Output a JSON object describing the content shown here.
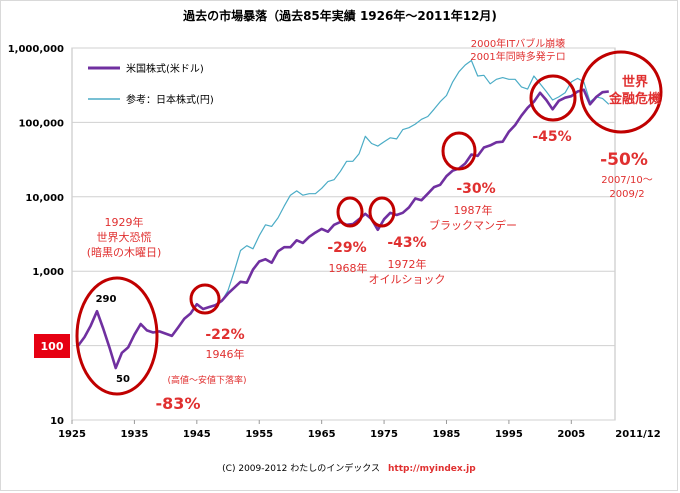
{
  "chart_data": {
    "type": "line",
    "title": "過去の市場暴落（過去85年実績 1926年～2011年12月)",
    "y_scale": "log",
    "ylim": [
      10,
      1000000
    ],
    "xlim": [
      1925,
      2012
    ],
    "y_ticks": [
      "10",
      "100",
      "1,000",
      "10,000",
      "100,000",
      "1,000,000"
    ],
    "x_ticks": [
      "1925",
      "1935",
      "1945",
      "1955",
      "1965",
      "1975",
      "1985",
      "1995",
      "2005"
    ],
    "x_end_label": "2011/12",
    "grid": true,
    "legend_position": "top-left",
    "base_marker": "100",
    "series": [
      {
        "name": "米国株式(米ドル)",
        "color": "#7030a0",
        "points": [
          [
            1926,
            100
          ],
          [
            1927,
            130
          ],
          [
            1928,
            185
          ],
          [
            1929,
            290
          ],
          [
            1930,
            170
          ],
          [
            1931,
            95
          ],
          [
            1932,
            50
          ],
          [
            1933,
            80
          ],
          [
            1934,
            95
          ],
          [
            1935,
            140
          ],
          [
            1936,
            195
          ],
          [
            1937,
            160
          ],
          [
            1938,
            150
          ],
          [
            1939,
            155
          ],
          [
            1940,
            145
          ],
          [
            1941,
            135
          ],
          [
            1942,
            175
          ],
          [
            1943,
            230
          ],
          [
            1944,
            270
          ],
          [
            1945,
            360
          ],
          [
            1946,
            310
          ],
          [
            1947,
            330
          ],
          [
            1948,
            350
          ],
          [
            1949,
            400
          ],
          [
            1950,
            500
          ],
          [
            1951,
            600
          ],
          [
            1952,
            720
          ],
          [
            1953,
            700
          ],
          [
            1954,
            1050
          ],
          [
            1955,
            1350
          ],
          [
            1956,
            1450
          ],
          [
            1957,
            1300
          ],
          [
            1958,
            1850
          ],
          [
            1959,
            2100
          ],
          [
            1960,
            2100
          ],
          [
            1961,
            2600
          ],
          [
            1962,
            2400
          ],
          [
            1963,
            2900
          ],
          [
            1964,
            3300
          ],
          [
            1965,
            3700
          ],
          [
            1966,
            3400
          ],
          [
            1967,
            4200
          ],
          [
            1968,
            4600
          ],
          [
            1969,
            4200
          ],
          [
            1970,
            4300
          ],
          [
            1971,
            5000
          ],
          [
            1972,
            5900
          ],
          [
            1973,
            5000
          ],
          [
            1974,
            3600
          ],
          [
            1975,
            5000
          ],
          [
            1976,
            6100
          ],
          [
            1977,
            5700
          ],
          [
            1978,
            6100
          ],
          [
            1979,
            7200
          ],
          [
            1980,
            9500
          ],
          [
            1981,
            9000
          ],
          [
            1982,
            11000
          ],
          [
            1983,
            13500
          ],
          [
            1984,
            14500
          ],
          [
            1985,
            19000
          ],
          [
            1986,
            22500
          ],
          [
            1987,
            24000
          ],
          [
            1988,
            28000
          ],
          [
            1989,
            37000
          ],
          [
            1990,
            35500
          ],
          [
            1991,
            46000
          ],
          [
            1992,
            49000
          ],
          [
            1993,
            54000
          ],
          [
            1994,
            55000
          ],
          [
            1995,
            75000
          ],
          [
            1996,
            92000
          ],
          [
            1997,
            123000
          ],
          [
            1998,
            157000
          ],
          [
            1999,
            190000
          ],
          [
            2000,
            250000
          ],
          [
            2001,
            200000
          ],
          [
            2002,
            150000
          ],
          [
            2003,
            195000
          ],
          [
            2004,
            215000
          ],
          [
            2005,
            225000
          ],
          [
            2006,
            260000
          ],
          [
            2007,
            275000
          ],
          [
            2008,
            175000
          ],
          [
            2009,
            220000
          ],
          [
            2010,
            255000
          ],
          [
            2011,
            260000
          ]
        ]
      },
      {
        "name": "参考：日本株式(円)",
        "color": "#4bacc6",
        "points": [
          [
            1949,
            400
          ],
          [
            1950,
            550
          ],
          [
            1951,
            1000
          ],
          [
            1952,
            1900
          ],
          [
            1953,
            2200
          ],
          [
            1954,
            2000
          ],
          [
            1955,
            3000
          ],
          [
            1956,
            4200
          ],
          [
            1957,
            4000
          ],
          [
            1958,
            5200
          ],
          [
            1959,
            7500
          ],
          [
            1960,
            10500
          ],
          [
            1961,
            12000
          ],
          [
            1962,
            10500
          ],
          [
            1963,
            11000
          ],
          [
            1964,
            11000
          ],
          [
            1965,
            13000
          ],
          [
            1966,
            16000
          ],
          [
            1967,
            17000
          ],
          [
            1968,
            22000
          ],
          [
            1969,
            30000
          ],
          [
            1970,
            30000
          ],
          [
            1971,
            38000
          ],
          [
            1972,
            65000
          ],
          [
            1973,
            52000
          ],
          [
            1974,
            48000
          ],
          [
            1975,
            55000
          ],
          [
            1976,
            62000
          ],
          [
            1977,
            60000
          ],
          [
            1978,
            80000
          ],
          [
            1979,
            85000
          ],
          [
            1980,
            95000
          ],
          [
            1981,
            110000
          ],
          [
            1982,
            120000
          ],
          [
            1983,
            150000
          ],
          [
            1984,
            190000
          ],
          [
            1985,
            230000
          ],
          [
            1986,
            350000
          ],
          [
            1987,
            480000
          ],
          [
            1988,
            590000
          ],
          [
            1989,
            680000
          ],
          [
            1990,
            420000
          ],
          [
            1991,
            430000
          ],
          [
            1992,
            330000
          ],
          [
            1993,
            380000
          ],
          [
            1994,
            400000
          ],
          [
            1995,
            380000
          ],
          [
            1996,
            380000
          ],
          [
            1997,
            300000
          ],
          [
            1998,
            280000
          ],
          [
            1999,
            420000
          ],
          [
            2000,
            330000
          ],
          [
            2001,
            260000
          ],
          [
            2002,
            200000
          ],
          [
            2003,
            220000
          ],
          [
            2004,
            250000
          ],
          [
            2005,
            350000
          ],
          [
            2006,
            390000
          ],
          [
            2007,
            350000
          ],
          [
            2008,
            190000
          ],
          [
            2009,
            220000
          ],
          [
            2010,
            210000
          ],
          [
            2011,
            175000
          ]
        ]
      }
    ],
    "annotations": [
      {
        "lines": [
          "1929年",
          "世界大恐慌",
          "(暗黒の木曜日)"
        ],
        "color": "#e03030"
      },
      {
        "lines": [
          "290"
        ],
        "color": "#000000"
      },
      {
        "lines": [
          "50"
        ],
        "color": "#000000"
      },
      {
        "lines": [
          "-83%"
        ],
        "color": "#e03030"
      },
      {
        "lines": [
          "(高値～安値下落率)"
        ],
        "color": "#e03030"
      },
      {
        "lines": [
          "-22%"
        ],
        "color": "#e03030"
      },
      {
        "lines": [
          "1946年"
        ],
        "color": "#e03030"
      },
      {
        "lines": [
          "-29%"
        ],
        "color": "#e03030"
      },
      {
        "lines": [
          "1968年"
        ],
        "color": "#e03030"
      },
      {
        "lines": [
          "-43%"
        ],
        "color": "#e03030"
      },
      {
        "lines": [
          "1972年",
          "オイルショック"
        ],
        "color": "#e03030"
      },
      {
        "lines": [
          "-30%"
        ],
        "color": "#e03030"
      },
      {
        "lines": [
          "1987年",
          "ブラックマンデー"
        ],
        "color": "#e03030"
      },
      {
        "lines": [
          "2000年ITバブル崩壊",
          "2001年同時多発テロ"
        ],
        "color": "#e03030"
      },
      {
        "lines": [
          "-45%"
        ],
        "color": "#e03030"
      },
      {
        "lines": [
          "世界",
          "金融危機"
        ],
        "color": "#e03030"
      },
      {
        "lines": [
          "-50%"
        ],
        "color": "#e03030"
      },
      {
        "lines": [
          "2007/10～",
          "2009/2"
        ],
        "color": "#e03030"
      }
    ],
    "footer": [
      "(C) 2009-2012 わたしのインデックス",
      "http://myindex.jp"
    ]
  }
}
